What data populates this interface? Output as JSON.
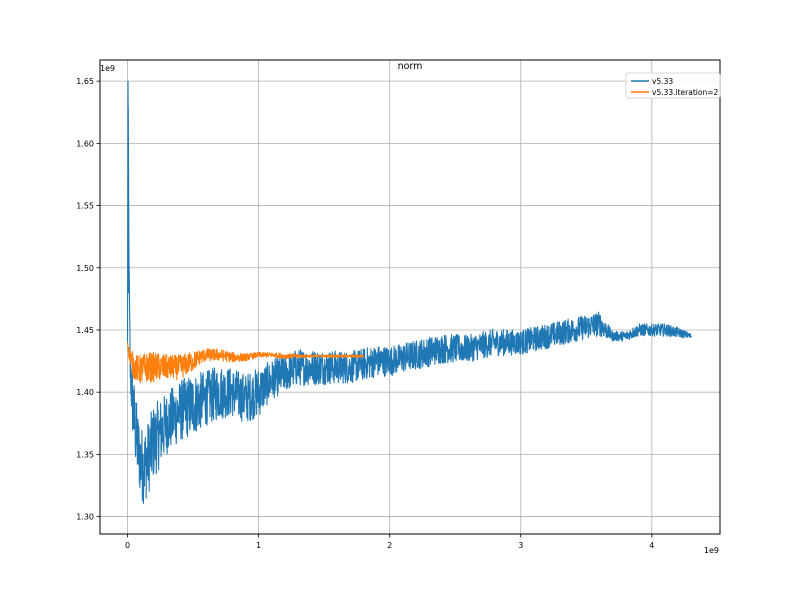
{
  "chart_data": {
    "type": "line",
    "title": "norm",
    "xlabel": "",
    "ylabel": "",
    "x_offset_label": "1e9",
    "y_offset_label": "1e9",
    "xlim": [
      -0.21,
      4.52
    ],
    "ylim": [
      1.286,
      1.667
    ],
    "x_ticks": [
      0,
      1,
      2,
      3,
      4
    ],
    "x_tick_labels": [
      "0",
      "1",
      "2",
      "3",
      "4"
    ],
    "y_ticks": [
      1.3,
      1.35,
      1.4,
      1.45,
      1.5,
      1.55,
      1.6,
      1.65
    ],
    "y_tick_labels": [
      "1.30",
      "1.35",
      "1.40",
      "1.45",
      "1.50",
      "1.55",
      "1.60",
      "1.65"
    ],
    "grid": true,
    "legend_position": "top-right",
    "series": [
      {
        "name": "v5.33",
        "color": "#1f77b4",
        "x": [
          0.0,
          0.005,
          0.01,
          0.02,
          0.04,
          0.06,
          0.08,
          0.1,
          0.12,
          0.15,
          0.2,
          0.3,
          0.4,
          0.5,
          0.6,
          0.7,
          0.8,
          0.9,
          1.0,
          1.1,
          1.2,
          1.3,
          1.5,
          1.7,
          1.9,
          2.0,
          2.2,
          2.4,
          2.6,
          2.8,
          3.0,
          3.2,
          3.4,
          3.6,
          3.7,
          3.8,
          3.9,
          4.0,
          4.1,
          4.2,
          4.3
        ],
        "y": [
          1.44,
          1.65,
          1.52,
          1.42,
          1.39,
          1.37,
          1.355,
          1.345,
          1.34,
          1.345,
          1.36,
          1.375,
          1.385,
          1.39,
          1.395,
          1.4,
          1.4,
          1.395,
          1.4,
          1.41,
          1.415,
          1.42,
          1.42,
          1.42,
          1.425,
          1.425,
          1.43,
          1.435,
          1.435,
          1.44,
          1.44,
          1.445,
          1.45,
          1.455,
          1.445,
          1.445,
          1.45,
          1.45,
          1.45,
          1.448,
          1.445
        ],
        "noise": [
          0,
          0,
          0,
          0.02,
          0.03,
          0.03,
          0.03,
          0.03,
          0.03,
          0.03,
          0.03,
          0.025,
          0.025,
          0.025,
          0.022,
          0.022,
          0.02,
          0.02,
          0.02,
          0.016,
          0.015,
          0.015,
          0.014,
          0.013,
          0.013,
          0.012,
          0.012,
          0.012,
          0.011,
          0.011,
          0.01,
          0.01,
          0.01,
          0.01,
          0.004,
          0.004,
          0.005,
          0.005,
          0.005,
          0.004,
          0.002
        ]
      },
      {
        "name": "v5.33.iteration=2",
        "color": "#ff7f0e",
        "x": [
          0.0,
          0.01,
          0.03,
          0.05,
          0.1,
          0.15,
          0.2,
          0.3,
          0.4,
          0.5,
          0.55,
          0.6,
          0.7,
          0.8,
          0.9,
          1.0,
          1.1,
          1.2,
          1.4,
          1.6,
          1.8
        ],
        "y": [
          1.44,
          1.432,
          1.425,
          1.42,
          1.418,
          1.42,
          1.42,
          1.42,
          1.42,
          1.425,
          1.428,
          1.43,
          1.43,
          1.428,
          1.428,
          1.43,
          1.43,
          1.429,
          1.429,
          1.429,
          1.429
        ],
        "noise": [
          0,
          0.005,
          0.01,
          0.01,
          0.012,
          0.012,
          0.012,
          0.01,
          0.01,
          0.008,
          0.006,
          0.005,
          0.005,
          0.004,
          0.003,
          0.002,
          0.002,
          0.002,
          0.001,
          0.001,
          0.001
        ]
      }
    ]
  }
}
